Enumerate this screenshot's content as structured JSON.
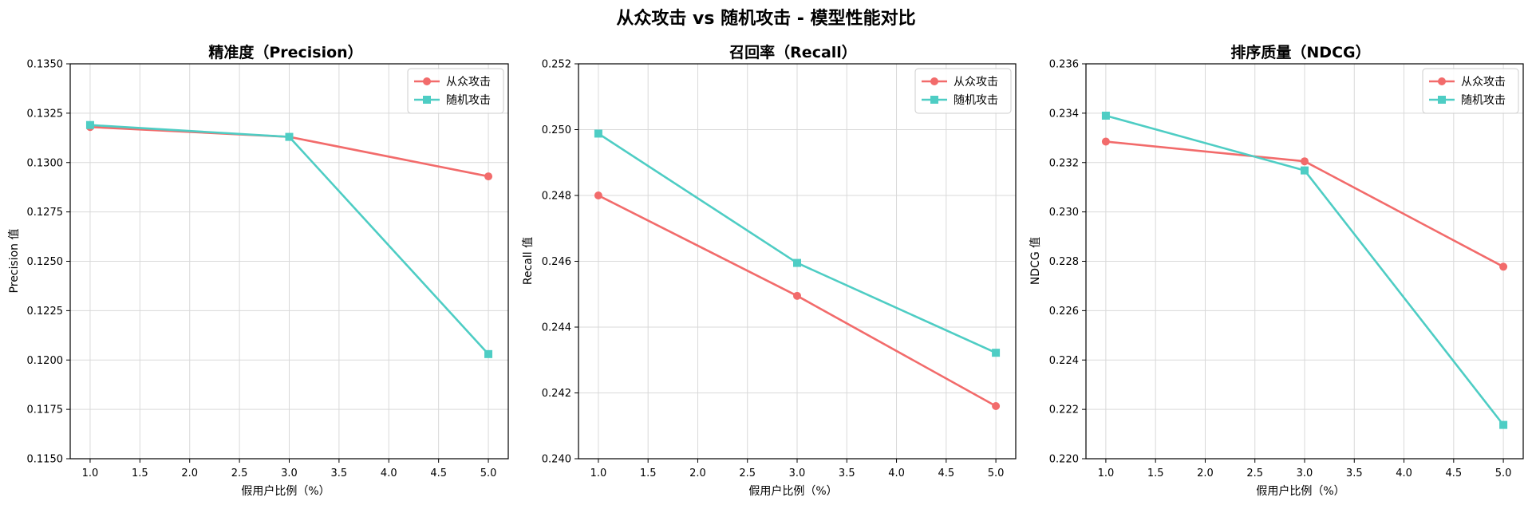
{
  "figure": {
    "title": "从众攻击 vs 随机攻击 - 模型性能对比"
  },
  "chart_data": [
    {
      "type": "line",
      "title": "精准度（Precision）",
      "xlabel": "假用户比例（%）",
      "ylabel": "Precision 值",
      "xlim": [
        0.8,
        5.2
      ],
      "ylim": [
        0.115,
        0.135
      ],
      "xticks": [
        "1.0",
        "1.5",
        "2.0",
        "2.5",
        "3.0",
        "3.5",
        "4.0",
        "4.5",
        "5.0"
      ],
      "yticks": [
        "0.1150",
        "0.1175",
        "0.1200",
        "0.1225",
        "0.1250",
        "0.1275",
        "0.1300",
        "0.1325",
        "0.1350"
      ],
      "grid": true,
      "legend": "top-right",
      "x": [
        1,
        3,
        5
      ],
      "series": [
        {
          "name": "从众攻击",
          "values": [
            0.1318,
            0.1313,
            0.1293
          ],
          "color": "#f26b6b",
          "marker": "circle"
        },
        {
          "name": "随机攻击",
          "values": [
            0.1319,
            0.1313,
            0.1203
          ],
          "color": "#4ecdc4",
          "marker": "square"
        }
      ]
    },
    {
      "type": "line",
      "title": "召回率（Recall）",
      "xlabel": "假用户比例（%）",
      "ylabel": "Recall 值",
      "xlim": [
        0.8,
        5.2
      ],
      "ylim": [
        0.24,
        0.252
      ],
      "xticks": [
        "1.0",
        "1.5",
        "2.0",
        "2.5",
        "3.0",
        "3.5",
        "4.0",
        "4.5",
        "5.0"
      ],
      "yticks": [
        "0.240",
        "0.242",
        "0.244",
        "0.246",
        "0.248",
        "0.250",
        "0.252"
      ],
      "grid": true,
      "legend": "top-right",
      "x": [
        1,
        3,
        5
      ],
      "series": [
        {
          "name": "从众攻击",
          "values": [
            0.248,
            0.24495,
            0.2416
          ],
          "color": "#f26b6b",
          "marker": "circle"
        },
        {
          "name": "随机攻击",
          "values": [
            0.24988,
            0.24595,
            0.24322
          ],
          "color": "#4ecdc4",
          "marker": "square"
        }
      ]
    },
    {
      "type": "line",
      "title": "排序质量（NDCG）",
      "xlabel": "假用户比例（%）",
      "ylabel": "NDCG 值",
      "xlim": [
        0.8,
        5.2
      ],
      "ylim": [
        0.22,
        0.236
      ],
      "xticks": [
        "1.0",
        "1.5",
        "2.0",
        "2.5",
        "3.0",
        "3.5",
        "4.0",
        "4.5",
        "5.0"
      ],
      "yticks": [
        "0.220",
        "0.222",
        "0.224",
        "0.226",
        "0.228",
        "0.230",
        "0.232",
        "0.234",
        "0.236"
      ],
      "grid": true,
      "legend": "top-right",
      "x": [
        1,
        3,
        5
      ],
      "series": [
        {
          "name": "从众攻击",
          "values": [
            0.23285,
            0.23205,
            0.22778
          ],
          "color": "#f26b6b",
          "marker": "circle"
        },
        {
          "name": "随机攻击",
          "values": [
            0.2339,
            0.23168,
            0.22137
          ],
          "color": "#4ecdc4",
          "marker": "square"
        }
      ]
    }
  ]
}
